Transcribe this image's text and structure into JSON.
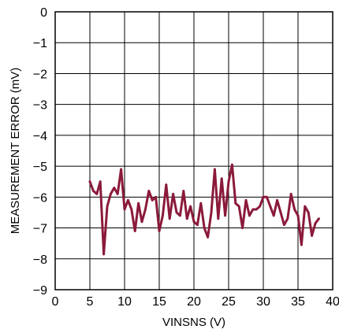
{
  "chart_data": {
    "type": "line",
    "title": "",
    "xlabel": "VINSNS (V)",
    "ylabel": "MEASUREMENT ERROR (mV)",
    "xlim": [
      0,
      40
    ],
    "ylim": [
      -9,
      0
    ],
    "x_ticks": [
      0,
      5,
      10,
      15,
      20,
      25,
      30,
      35,
      40
    ],
    "y_ticks": [
      0,
      -1,
      -2,
      -3,
      -4,
      -5,
      -6,
      -7,
      -8,
      -9
    ],
    "x_tick_labels": [
      "0",
      "5",
      "10",
      "15",
      "20",
      "25",
      "30",
      "35",
      "40"
    ],
    "y_tick_labels": [
      "0",
      "−1",
      "−2",
      "−3",
      "−4",
      "−5",
      "−6",
      "−7",
      "−8",
      "−9"
    ],
    "grid": true,
    "line_color": "#8b1a3a",
    "series": [
      {
        "x": [
          5.0,
          5.5,
          6.0,
          6.5,
          7.0,
          7.5,
          8.0,
          8.5,
          9.0,
          9.5,
          10.0,
          10.5,
          11.0,
          11.5,
          12.0,
          12.5,
          13.0,
          13.5,
          14.0,
          14.5,
          15.0,
          15.5,
          16.0,
          16.5,
          17.0,
          17.5,
          18.0,
          18.5,
          19.0,
          19.5,
          20.0,
          20.5,
          21.0,
          21.5,
          22.0,
          22.5,
          23.0,
          23.5,
          24.0,
          24.5,
          25.0,
          25.5,
          26.0,
          26.5,
          27.0,
          27.5,
          28.0,
          28.5,
          29.0,
          29.5,
          30.0,
          30.5,
          31.0,
          31.5,
          32.0,
          32.5,
          33.0,
          33.5,
          34.0,
          34.5,
          35.0,
          35.5,
          36.0,
          36.5,
          37.0,
          37.5,
          38.0
        ],
        "y": [
          -5.5,
          -5.8,
          -5.9,
          -5.5,
          -7.85,
          -6.3,
          -5.9,
          -5.7,
          -5.9,
          -5.1,
          -6.4,
          -6.1,
          -6.4,
          -7.1,
          -6.2,
          -6.8,
          -6.4,
          -5.8,
          -6.1,
          -6.0,
          -7.1,
          -6.6,
          -5.6,
          -6.7,
          -5.9,
          -6.5,
          -6.6,
          -5.8,
          -6.7,
          -6.3,
          -6.8,
          -6.9,
          -6.2,
          -7.0,
          -7.3,
          -6.5,
          -5.1,
          -6.7,
          -5.4,
          -6.6,
          -5.5,
          -4.95,
          -6.2,
          -6.3,
          -7.0,
          -6.1,
          -6.6,
          -6.4,
          -6.4,
          -6.3,
          -6.0,
          -6.0,
          -6.3,
          -6.6,
          -6.1,
          -6.5,
          -6.9,
          -6.7,
          -5.9,
          -6.4,
          -6.6,
          -7.55,
          -6.3,
          -6.5,
          -7.25,
          -6.85,
          -6.7
        ]
      }
    ]
  }
}
